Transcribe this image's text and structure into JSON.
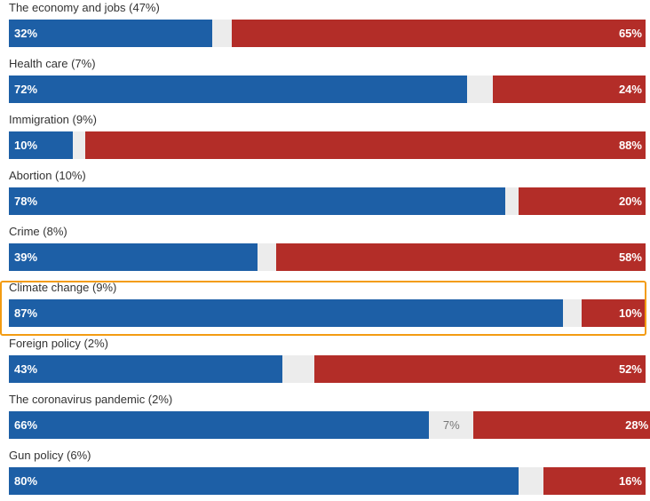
{
  "colors": {
    "democrat": "#1d5fa6",
    "republican": "#b32d28",
    "neither": "#ececec",
    "highlight": "#f39c12"
  },
  "highlighted_row": "Climate change",
  "chart_data": {
    "type": "bar",
    "orientation": "horizontal",
    "stacked": true,
    "categories": [
      "The economy and jobs (47%)",
      "Health care (7%)",
      "Immigration (9%)",
      "Abortion (10%)",
      "Crime (8%)",
      "Climate change (9%)",
      "Foreign policy (2%)",
      "The coronavirus pandemic (2%)",
      "Gun policy (6%)"
    ],
    "series": [
      {
        "values": [
          32,
          72,
          10,
          78,
          39,
          87,
          43,
          66,
          80
        ],
        "color": "#1d5fa6"
      },
      {
        "values": [
          3,
          4,
          2,
          2,
          3,
          3,
          5,
          7,
          4
        ],
        "color": "#ececec",
        "label_shown": [
          false,
          false,
          false,
          false,
          false,
          false,
          false,
          true,
          false
        ]
      },
      {
        "values": [
          65,
          24,
          88,
          20,
          58,
          10,
          52,
          28,
          16
        ],
        "color": "#b32d28"
      }
    ],
    "value_labels": {
      "series0": [
        "32%",
        "72%",
        "10%",
        "78%",
        "39%",
        "87%",
        "43%",
        "66%",
        "80%"
      ],
      "series1": [
        "",
        "",
        "",
        "",
        "",
        "",
        "",
        "7%",
        ""
      ],
      "series2": [
        "65%",
        "24%",
        "88%",
        "20%",
        "58%",
        "10%",
        "52%",
        "28%",
        "16%"
      ]
    },
    "xlim": [
      0,
      100
    ],
    "grid": false,
    "legend": "none"
  }
}
